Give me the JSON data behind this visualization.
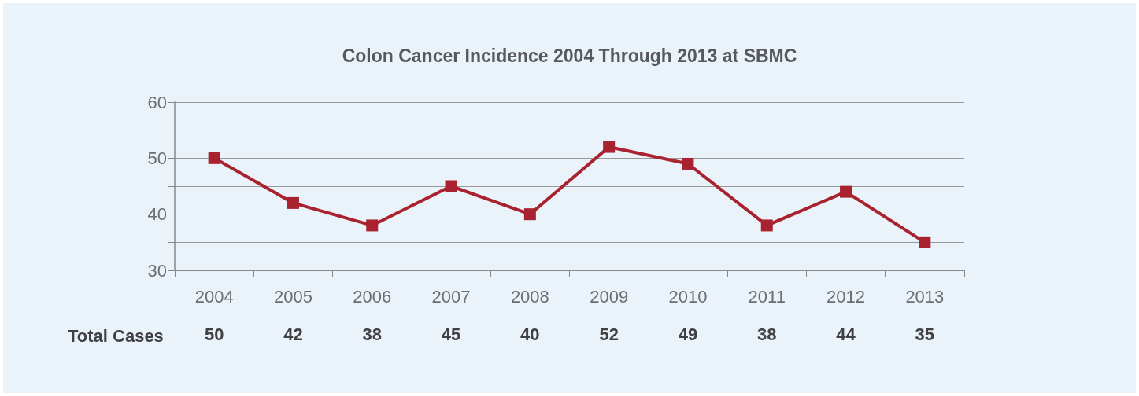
{
  "chart_data": {
    "type": "line",
    "title": "Colon Cancer Incidence 2004 Through 2013 at SBMC",
    "categories": [
      "2004",
      "2005",
      "2006",
      "2007",
      "2008",
      "2009",
      "2010",
      "2011",
      "2012",
      "2013"
    ],
    "series": [
      {
        "color": "#a8232f",
        "values": [
          50,
          42,
          38,
          45,
          40,
          52,
          49,
          38,
          44,
          35
        ]
      }
    ],
    "ylim": [
      30,
      60
    ],
    "yticks": [
      30,
      {
        "value": 35,
        "label": null
      },
      40,
      {
        "value": 45,
        "label": null
      },
      50,
      {
        "value": 55,
        "label": null
      },
      60
    ],
    "grid": "y",
    "marker": "square",
    "line_style": "solid",
    "data_labels": true,
    "annotations": [
      "Total Cases"
    ]
  }
}
